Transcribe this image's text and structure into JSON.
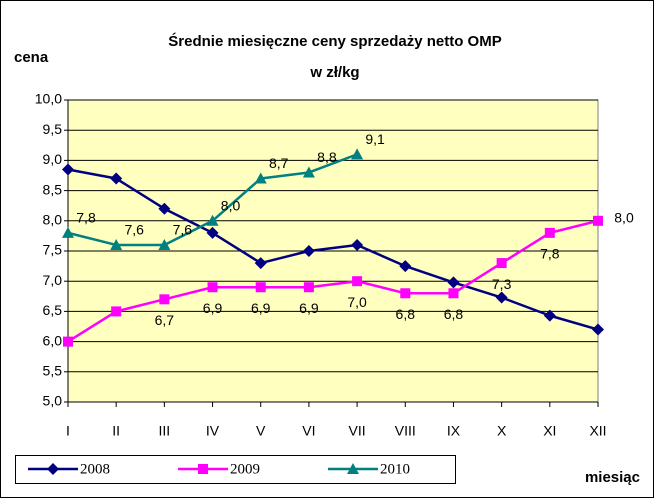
{
  "chart_data": {
    "type": "line",
    "title": "Średnie miesięczne ceny sprzedaży netto OMP",
    "subtitle": "w zł/kg",
    "y_label": "cena",
    "x_label": "miesiąc",
    "categories": [
      "I",
      "II",
      "III",
      "IV",
      "V",
      "VI",
      "VII",
      "VIII",
      "IX",
      "X",
      "XI",
      "XII"
    ],
    "series": [
      {
        "name": "2008",
        "color": "#000080",
        "marker": "diamond",
        "values": [
          8.85,
          8.7,
          8.2,
          7.8,
          7.3,
          7.5,
          7.6,
          7.25,
          6.98,
          6.73,
          6.43,
          6.2
        ]
      },
      {
        "name": "2009",
        "color": "#ff00ff",
        "marker": "square",
        "values": [
          6.0,
          6.5,
          6.7,
          6.9,
          6.9,
          6.9,
          7.0,
          6.8,
          6.8,
          7.3,
          7.8,
          8.0
        ],
        "value_labels": [
          null,
          null,
          "6,7",
          "6,9",
          "6,9",
          "6,9",
          "7,0",
          "6,8",
          "6,8",
          "7,3",
          "7,8",
          "8,0"
        ]
      },
      {
        "name": "2010",
        "color": "#008080",
        "marker": "triangle",
        "values": [
          7.8,
          7.6,
          7.6,
          8.0,
          8.7,
          8.8,
          9.1,
          null,
          null,
          null,
          null,
          null
        ],
        "value_labels": [
          "7,8",
          "7,6",
          "7,6",
          "8,0",
          "8,7",
          "8,8",
          "9,1",
          null,
          null,
          null,
          null,
          null
        ]
      }
    ],
    "ylim": [
      5,
      10
    ],
    "yticks": [
      {
        "value": 5,
        "label": "5,0"
      },
      {
        "value": 5.5,
        "label": "5,5"
      },
      {
        "value": 6,
        "label": "6,0"
      },
      {
        "value": 6.5,
        "label": "6,5"
      },
      {
        "value": 7,
        "label": "7,0"
      },
      {
        "value": 7.5,
        "label": "7,5"
      },
      {
        "value": 8,
        "label": "8,0"
      },
      {
        "value": 8.5,
        "label": "8,5"
      },
      {
        "value": 9,
        "label": "9,0"
      },
      {
        "value": 9.5,
        "label": "9,5"
      },
      {
        "value": 10,
        "label": "10,0"
      }
    ],
    "grid": true,
    "plot_background": "#ffffc0"
  }
}
